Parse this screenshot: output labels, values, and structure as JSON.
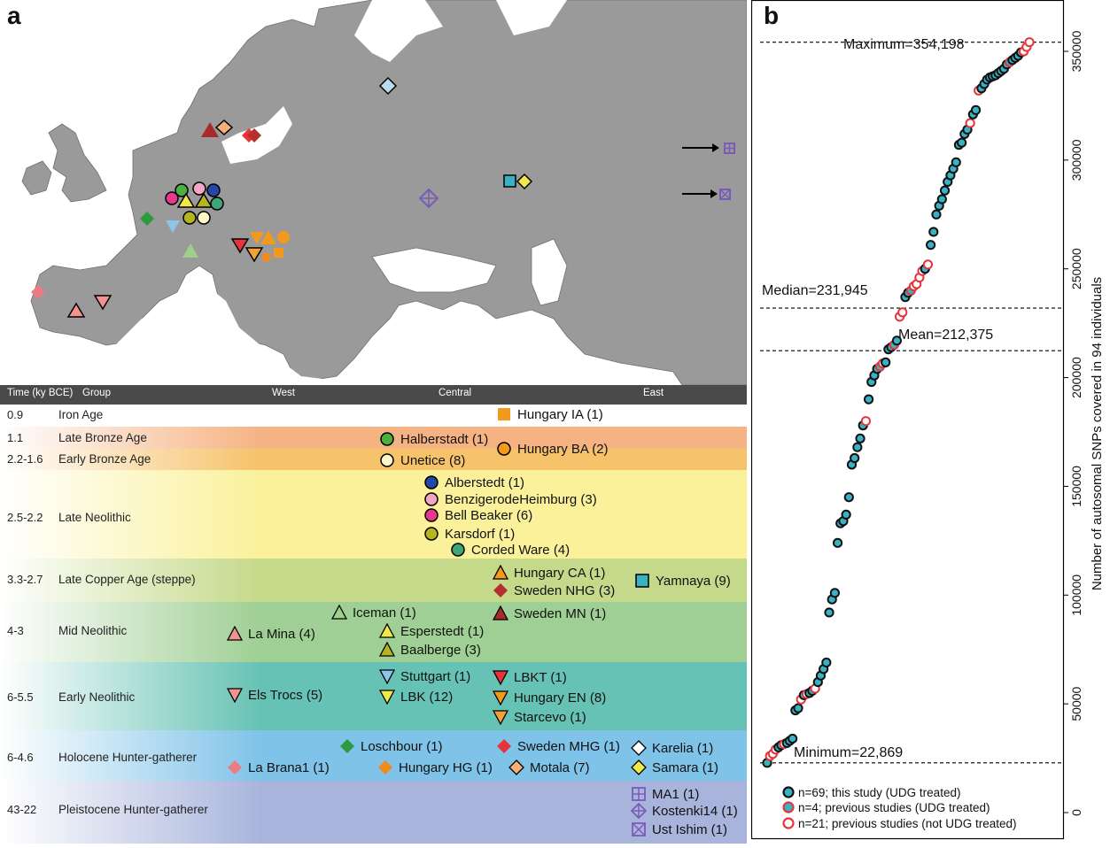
{
  "panel_a": {
    "letter": "a",
    "header": {
      "time": "Time (ky BCE)",
      "group": "Group",
      "west": "West",
      "central": "Central",
      "east": "East"
    },
    "bands": [
      {
        "time": "0.9",
        "group": "Iron Age",
        "color": "#ffffff",
        "entries": [
          {
            "label": "Hungary IA (1)",
            "shape": "square",
            "color": "#f39a1c"
          }
        ]
      },
      {
        "time": "1.1",
        "group": "Late Bronze Age",
        "color": "#f5b384",
        "entries": [
          {
            "label": "Halberstadt (1)",
            "shape": "circle",
            "color": "#4caf3e"
          },
          {
            "label": "Hungary BA (2)",
            "shape": "circle",
            "color": "#f39a1c"
          }
        ]
      },
      {
        "time": "2.2-1.6",
        "group": "Early Bronze Age",
        "color": "#f6c26a",
        "entries": [
          {
            "label": "Unetice (8)",
            "shape": "circle",
            "color": "#fff9c8"
          }
        ]
      },
      {
        "time": "2.5-2.2",
        "group": "Late Neolithic",
        "color": "#faf19a",
        "entries": [
          {
            "label": "Alberstedt (1)",
            "shape": "circle",
            "color": "#2548a6"
          },
          {
            "label": "BenzigerodeHeimburg (3)",
            "shape": "circle",
            "color": "#f2a6c4"
          },
          {
            "label": "Bell Beaker (6)",
            "shape": "circle",
            "color": "#e53a8c"
          },
          {
            "label": "Karsdorf (1)",
            "shape": "circle",
            "color": "#b5b522"
          },
          {
            "label": "Corded Ware (4)",
            "shape": "circle",
            "color": "#3fa67a"
          }
        ]
      },
      {
        "time": "3.3-2.7",
        "group": "Late Copper Age (steppe)",
        "color": "#c5d98a",
        "entries": [
          {
            "label": "Hungary CA (1)",
            "shape": "triangle",
            "color": "#f39a1c"
          },
          {
            "label": "Sweden NHG (3)",
            "shape": "diamond",
            "color": "#b3302e"
          },
          {
            "label": "Yamnaya (9)",
            "shape": "square",
            "color": "#37b3c4"
          }
        ]
      },
      {
        "time": "4-3",
        "group": "Mid Neolithic",
        "color": "#9fcf94",
        "entries": [
          {
            "label": "La Mina (4)",
            "shape": "triangle",
            "color": "#f2938f"
          },
          {
            "label": "Iceman (1)",
            "shape": "triangle",
            "color": "#9fd08a"
          },
          {
            "label": "Esperstedt (1)",
            "shape": "triangle",
            "color": "#f1e94a"
          },
          {
            "label": "Baalberge (3)",
            "shape": "triangle",
            "color": "#b5b522"
          },
          {
            "label": "Sweden MN (1)",
            "shape": "triangle",
            "color": "#a82b2b"
          }
        ]
      },
      {
        "time": "6-5.5",
        "group": "Early Neolithic",
        "color": "#66c2b4",
        "entries": [
          {
            "label": "Els Trocs (5)",
            "shape": "triangle-down",
            "color": "#f2938f"
          },
          {
            "label": "Stuttgart (1)",
            "shape": "triangle-down",
            "color": "#8ec4e6"
          },
          {
            "label": "LBK (12)",
            "shape": "triangle-down",
            "color": "#f1e94a"
          },
          {
            "label": "LBKT (1)",
            "shape": "triangle-down",
            "color": "#e8333a"
          },
          {
            "label": "Hungary EN (8)",
            "shape": "triangle-down",
            "color": "#f39a1c"
          },
          {
            "label": "Starcevo (1)",
            "shape": "triangle-down",
            "color": "#f0a238"
          }
        ]
      },
      {
        "time": "6-4.6",
        "group": "Holocene Hunter-gatherer",
        "color": "#7fc3e8",
        "entries": [
          {
            "label": "Loschbour (1)",
            "shape": "diamond",
            "color": "#2e9a3e"
          },
          {
            "label": "Sweden MHG (1)",
            "shape": "diamond",
            "color": "#e8333a"
          },
          {
            "label": "Karelia (1)",
            "shape": "diamond",
            "color": "#ffffff"
          },
          {
            "label": "La Brana1 (1)",
            "shape": "diamond",
            "color": "#ee7b84"
          },
          {
            "label": "Hungary HG (1)",
            "shape": "diamond",
            "color": "#f28a1e"
          },
          {
            "label": "Motala (7)",
            "shape": "diamond",
            "color": "#f5b07a"
          },
          {
            "label": "Samara (1)",
            "shape": "diamond",
            "color": "#f1e94a"
          }
        ]
      },
      {
        "time": "43-22",
        "group": "Pleistocene Hunter-gatherer",
        "color": "#a8b4dc",
        "entries": [
          {
            "label": "MA1 (1)",
            "shape": "square-plus",
            "color": "#7a5cb8"
          },
          {
            "label": "Kostenki14 (1)",
            "shape": "diamond-plus",
            "color": "#7a5cb8"
          },
          {
            "label": "Ust Ishim (1)",
            "shape": "square-x",
            "color": "#7a5cb8"
          }
        ]
      }
    ]
  },
  "panel_b": {
    "letter": "b",
    "annotations": {
      "maximum": "Maximum=354,198",
      "median": "Median=231,945",
      "mean": "Mean=212,375",
      "minimum": "Minimum=22,869"
    },
    "legend": [
      {
        "label": "n=69; this study (UDG treated)",
        "fill": "#37b3c4",
        "stroke": "#111111"
      },
      {
        "label": "n=4; previous studies (UDG treated)",
        "fill": "#37b3c4",
        "stroke": "#e8333a"
      },
      {
        "label": "n=21; previous studies (not UDG treated)",
        "fill": "#ffffff",
        "stroke": "#e8333a"
      }
    ]
  },
  "chart_data": {
    "type": "scatter",
    "ylabel": "Number of autosomal SNPs covered in 94 individuals",
    "ylim": [
      0,
      360000
    ],
    "yticks": [
      0,
      50000,
      100000,
      150000,
      200000,
      250000,
      300000,
      350000
    ],
    "reference_lines": [
      {
        "name": "Maximum",
        "value": 354198
      },
      {
        "name": "Median",
        "value": 231945
      },
      {
        "name": "Mean",
        "value": 212375
      },
      {
        "name": "Minimum",
        "value": 22869
      }
    ],
    "x": "rank 1-94 (sorted ascending)",
    "series": [
      {
        "name": "n=69; this study (UDG treated)",
        "values": [
          22869,
          30000,
          31000,
          32000,
          33000,
          34000,
          47000,
          48000,
          54000,
          55000,
          56000,
          60000,
          63000,
          66000,
          69000,
          92000,
          98000,
          101000,
          124000,
          133000,
          134000,
          137000,
          145000,
          160000,
          163000,
          168000,
          172000,
          178000,
          190000,
          198000,
          201000,
          204000,
          207000,
          213000,
          214000,
          217000,
          237000,
          239000,
          250000,
          261000,
          267000,
          275000,
          279000,
          282000,
          286000,
          290000,
          293000,
          296000,
          299000,
          307000,
          308000,
          312000,
          314000,
          321000,
          323000,
          333000,
          335000,
          337000,
          338000,
          338500,
          339000,
          340000,
          341000,
          342000,
          344000,
          346000,
          347000,
          348000,
          349500
        ]
      },
      {
        "name": "n=4; previous studies (UDG treated)",
        "values": [
          205000,
          215000,
          240000,
          345000
        ]
      },
      {
        "name": "n=21; previous studies (not UDG treated)",
        "values": [
          26000,
          27000,
          29000,
          31500,
          52000,
          54500,
          57000,
          180000,
          206500,
          228000,
          230000,
          242000,
          243000,
          246000,
          249000,
          252000,
          317000,
          332000,
          350000,
          352000,
          354198
        ]
      }
    ]
  }
}
